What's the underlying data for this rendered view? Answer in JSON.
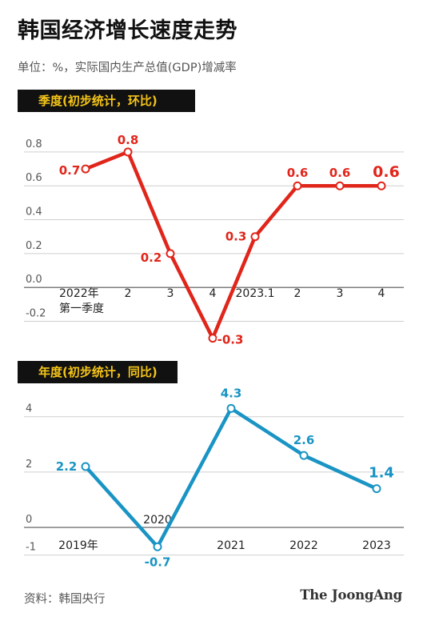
{
  "title": "韩国经济增长速度走势",
  "subtitle": "单位：%，实际国内生产总值(GDP)增减率",
  "source": "资料：韩国央行",
  "logo_text": "The JoongAng",
  "chart_data": [
    {
      "type": "line",
      "title": "季度(初步统计，环比)",
      "categories": [
        "2022年第一季度",
        "2",
        "3",
        "4",
        "2023.1",
        "2",
        "3",
        "4"
      ],
      "category_labels": [
        [
          "2022年",
          "第一季度"
        ],
        [
          "2"
        ],
        [
          "3"
        ],
        [
          "4"
        ],
        [
          "2023.1"
        ],
        [
          "2"
        ],
        [
          "3"
        ],
        [
          "4"
        ]
      ],
      "series": [
        {
          "color": "#e0261b",
          "values": [
            0.7,
            0.8,
            0.2,
            -0.3,
            0.3,
            0.6,
            0.6,
            0.6
          ]
        }
      ],
      "data_labels": [
        "0.7",
        "0.8",
        "0.2",
        "-0.3",
        "0.3",
        "0.6",
        "0.6",
        "0.6"
      ],
      "yticks": [
        -0.2,
        0.0,
        0.2,
        0.4,
        0.6,
        0.8
      ],
      "ytick_labels": [
        "-0.2",
        "0.0",
        "0.2",
        "0.4",
        "0.6",
        "0.8"
      ],
      "ylim": [
        -0.33,
        0.88
      ],
      "grid": true,
      "xlabel": "",
      "ylabel": ""
    },
    {
      "type": "line",
      "title": "年度(初步统计，同比)",
      "categories": [
        "2019年",
        "2020",
        "2021",
        "2022",
        "2023"
      ],
      "series": [
        {
          "color": "#1a94c4",
          "values": [
            2.2,
            -0.7,
            4.3,
            2.6,
            1.4
          ]
        }
      ],
      "data_labels": [
        "2.2",
        "-0.7",
        "4.3",
        "2.6",
        "1.4"
      ],
      "yticks": [
        -1,
        0,
        2,
        4
      ],
      "ytick_labels": [
        "-1",
        "0",
        "2",
        "4"
      ],
      "ylim": [
        -1.3,
        4.6
      ],
      "grid": true,
      "xlabel": "",
      "ylabel": ""
    }
  ]
}
